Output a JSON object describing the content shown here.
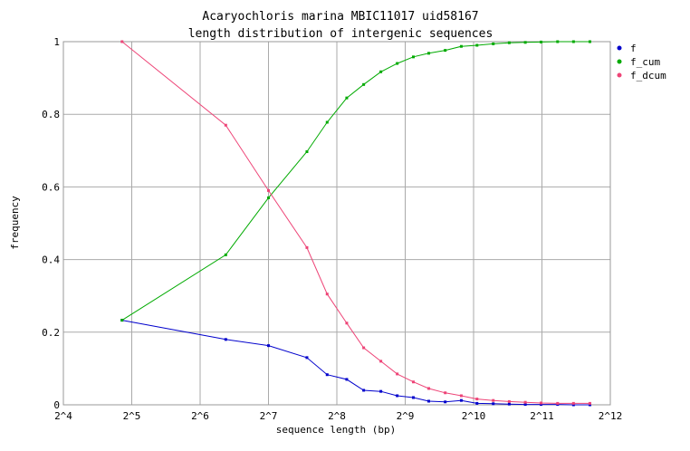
{
  "chart_data": {
    "type": "line",
    "title": "Acaryochloris marina MBIC11017 uid58167",
    "subtitle": "length distribution of intergenic sequences",
    "xlabel": "sequence length (bp)",
    "ylabel": "frequency",
    "x_scale": "log2",
    "xlim": [
      16,
      4096
    ],
    "ylim": [
      0,
      1
    ],
    "grid": true,
    "legend_position": "top-right",
    "x_ticks": [
      {
        "value": 16,
        "label": "2^4"
      },
      {
        "value": 32,
        "label": "2^5"
      },
      {
        "value": 64,
        "label": "2^6"
      },
      {
        "value": 128,
        "label": "2^7"
      },
      {
        "value": 256,
        "label": "2^8"
      },
      {
        "value": 512,
        "label": "2^9"
      },
      {
        "value": 1024,
        "label": "2^10"
      },
      {
        "value": 2048,
        "label": "2^11"
      },
      {
        "value": 4096,
        "label": "2^12"
      }
    ],
    "y_ticks": [
      {
        "value": 0,
        "label": "0"
      },
      {
        "value": 0.2,
        "label": "0.2"
      },
      {
        "value": 0.4,
        "label": "0.4"
      },
      {
        "value": 0.6,
        "label": "0.6"
      },
      {
        "value": 0.8,
        "label": "0.8"
      },
      {
        "value": 1,
        "label": "1"
      }
    ],
    "series": [
      {
        "name": "f",
        "color": "#0000cc",
        "x": [
          29,
          83,
          128,
          189,
          232,
          283,
          336,
          400,
          472,
          556,
          650,
          768,
          904,
          1060,
          1250,
          1470,
          1730,
          2030,
          2400,
          2820,
          3330
        ],
        "y": [
          0.233,
          0.18,
          0.163,
          0.13,
          0.083,
          0.07,
          0.04,
          0.037,
          0.025,
          0.02,
          0.01,
          0.008,
          0.012,
          0.004,
          0.003,
          0.002,
          0.001,
          0.001,
          0.001,
          0.0,
          0.0
        ]
      },
      {
        "name": "f_cum",
        "color": "#00aa00",
        "x": [
          29,
          83,
          128,
          189,
          232,
          283,
          336,
          400,
          472,
          556,
          650,
          768,
          904,
          1060,
          1250,
          1470,
          1730,
          2030,
          2400,
          2820,
          3330
        ],
        "y": [
          0.233,
          0.413,
          0.57,
          0.697,
          0.778,
          0.845,
          0.882,
          0.917,
          0.94,
          0.958,
          0.968,
          0.976,
          0.987,
          0.99,
          0.994,
          0.997,
          0.998,
          0.999,
          1.0,
          1.0,
          1.0
        ]
      },
      {
        "name": "f_dcum",
        "color": "#ee4477",
        "x": [
          29,
          83,
          128,
          189,
          232,
          283,
          336,
          400,
          472,
          556,
          650,
          768,
          904,
          1060,
          1250,
          1470,
          1730,
          2030,
          2400,
          2820,
          3330
        ],
        "y": [
          1.0,
          0.77,
          0.59,
          0.433,
          0.305,
          0.225,
          0.157,
          0.12,
          0.085,
          0.063,
          0.045,
          0.033,
          0.025,
          0.016,
          0.012,
          0.009,
          0.007,
          0.005,
          0.004,
          0.004,
          0.004
        ]
      }
    ]
  }
}
